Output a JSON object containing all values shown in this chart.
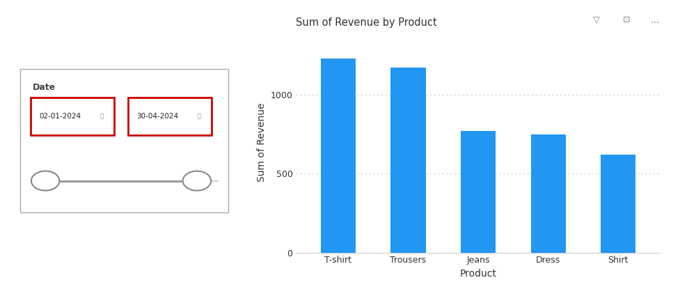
{
  "title": "Sum of Revenue by Product",
  "categories": [
    "T-shirt",
    "Trousers",
    "Jeans",
    "Dress",
    "Shirt"
  ],
  "values": [
    1230,
    1170,
    770,
    750,
    620
  ],
  "bar_color": "#2196F3",
  "xlabel": "Product",
  "ylabel": "Sum of Revenue",
  "ylim": [
    0,
    1400
  ],
  "yticks": [
    0,
    500,
    1000
  ],
  "grid_color": "#bbbbbb",
  "bg_color": "#ffffff",
  "chart_bg": "#ffffff",
  "date_start": "02-01-2024",
  "date_end": "30-04-2024",
  "slicer_label": "Date",
  "icon_color": "#888888",
  "red_border": "#cc0000",
  "slider_line_color": "#888888",
  "slider_circle_color": "#ffffff",
  "outer_box_color": "#aaaaaa",
  "chart_border_color": "#cccccc",
  "title_fontsize": 10.5,
  "axis_label_fontsize": 10,
  "tick_fontsize": 9
}
